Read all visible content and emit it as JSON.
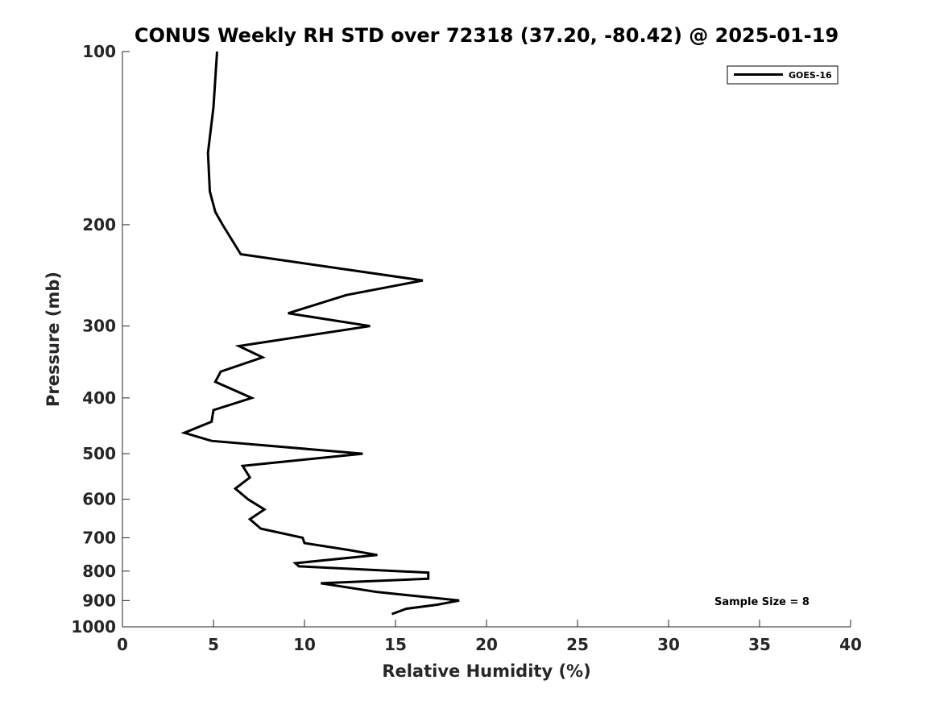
{
  "chart_data": {
    "type": "line",
    "title": "CONUS Weekly RH STD over 72318 (37.20, -80.42) @ 2025-01-19",
    "xlabel": "Relative Humidity (%)",
    "ylabel": "Pressure (mb)",
    "xlim": [
      0,
      40
    ],
    "ylim": [
      100,
      1000
    ],
    "yscale": "log",
    "y_reversed": true,
    "x_ticks": [
      0,
      5,
      10,
      15,
      20,
      25,
      30,
      35,
      40
    ],
    "y_ticks": [
      100,
      200,
      300,
      400,
      500,
      600,
      700,
      800,
      900,
      1000
    ],
    "grid": false,
    "legend_position": "top-right",
    "annotation": "Sample Size = 8",
    "series": [
      {
        "name": "GOES-16",
        "color": "#000000",
        "x": [
          5.2,
          5.0,
          4.7,
          4.8,
          5.1,
          5.5,
          6.5,
          16.5,
          12.3,
          9.1,
          13.6,
          6.4,
          7.7,
          5.4,
          5.1,
          7.1,
          5.0,
          4.9,
          3.4,
          4.9,
          13.2,
          6.6,
          7.0,
          6.2,
          6.9,
          7.8,
          7.0,
          7.6,
          9.9,
          10.0,
          12.4,
          14.0,
          9.5,
          9.7,
          16.8,
          16.8,
          10.9,
          14.0,
          18.5,
          17.3,
          15.6,
          14.8
        ],
        "y": [
          100,
          125,
          150,
          175,
          190,
          200,
          225,
          250,
          265,
          285,
          300,
          325,
          340,
          360,
          375,
          400,
          420,
          440,
          460,
          475,
          500,
          525,
          550,
          575,
          600,
          625,
          650,
          675,
          700,
          715,
          735,
          750,
          775,
          785,
          805,
          825,
          840,
          870,
          900,
          915,
          930,
          950
        ]
      }
    ]
  }
}
